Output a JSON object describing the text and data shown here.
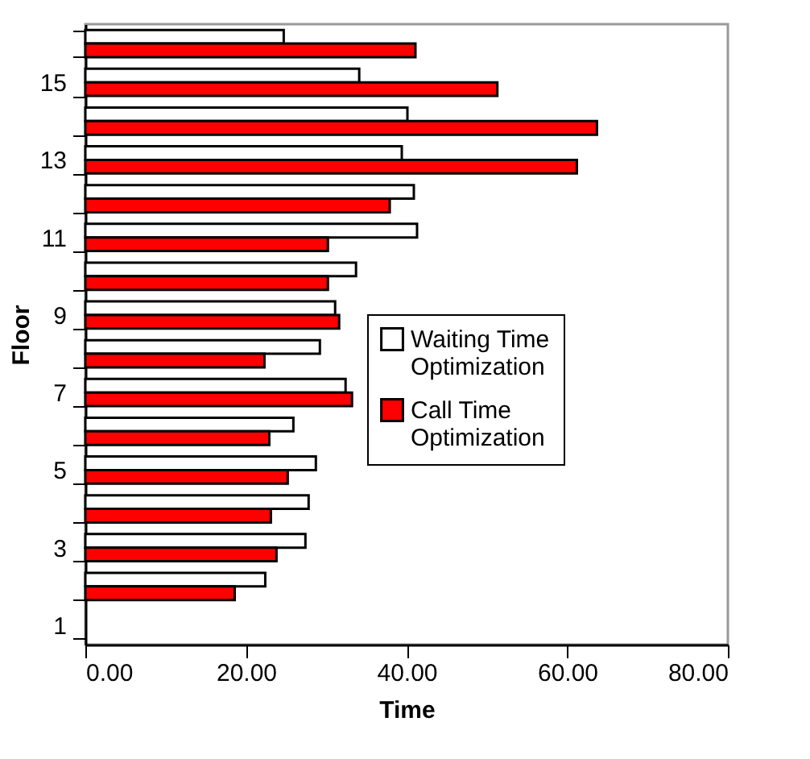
{
  "chart_data": {
    "type": "bar",
    "orientation": "horizontal",
    "xlabel": "Time",
    "ylabel": "Floor",
    "categories": [
      null,
      "15",
      null,
      "13",
      null,
      "11",
      null,
      "9",
      null,
      "7",
      null,
      "5",
      null,
      "3",
      null,
      "1"
    ],
    "series": [
      {
        "name": "Waiting Time Optimization",
        "color": "#ffffff",
        "values": [
          24.7,
          34.1,
          40.1,
          39.4,
          40.9,
          41.3,
          33.7,
          31.1,
          29.2,
          32.4,
          25.9,
          28.7,
          27.8,
          27.4,
          22.4,
          null
        ]
      },
      {
        "name": "Call Time Optimization",
        "color": "#ff0000",
        "values": [
          41.1,
          51.3,
          63.7,
          61.2,
          37.9,
          30.2,
          30.2,
          31.6,
          22.3,
          33.2,
          22.9,
          25.2,
          23.1,
          23.8,
          18.6,
          null
        ]
      }
    ],
    "xlim": [
      0,
      80
    ],
    "xticks": [
      {
        "value": 0,
        "label": "0.00"
      },
      {
        "value": 20,
        "label": "20.00"
      },
      {
        "value": 40,
        "label": "40.00"
      },
      {
        "value": 60,
        "label": "60.00"
      },
      {
        "value": 80,
        "label": "80.00"
      }
    ],
    "grid": false,
    "legend": "right"
  }
}
